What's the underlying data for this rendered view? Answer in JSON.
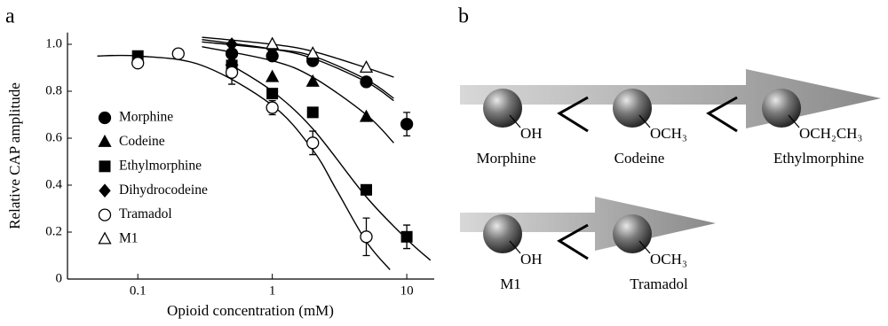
{
  "panel_labels": [
    "a",
    "b"
  ],
  "chart_data": {
    "type": "scatter",
    "xlabel": "Opioid concentration (mM)",
    "ylabel": "Relative CAP amplitude",
    "xscale": "log",
    "xlim": [
      0.03,
      16
    ],
    "ylim": [
      0,
      1.05
    ],
    "xticks": [
      0.1,
      1,
      10
    ],
    "yticks": [
      0,
      0.2,
      0.4,
      0.6,
      0.8,
      {
        "value": 1,
        "label": "1.0"
      }
    ],
    "legend": "left",
    "series": [
      {
        "name": "Morphine",
        "color": "#000000",
        "marker": "circle",
        "filled": true,
        "x": [
          0.5,
          1,
          2,
          5,
          10
        ],
        "values": [
          0.96,
          0.95,
          0.93,
          0.84,
          0.66
        ],
        "errors": [
          null,
          null,
          null,
          null,
          0.05
        ],
        "curve": {
          "x": [
            0.3,
            1,
            2,
            5,
            8
          ],
          "values": [
            1.02,
            0.98,
            0.94,
            0.84,
            0.76
          ]
        }
      },
      {
        "name": "Codeine",
        "color": "#000000",
        "marker": "triangle",
        "filled": true,
        "x": [
          0.5,
          1,
          2,
          5
        ],
        "values": [
          0.93,
          0.86,
          0.84,
          0.69
        ],
        "errors": [
          null,
          null,
          null,
          null
        ],
        "curve": {
          "x": [
            0.3,
            1,
            2,
            5,
            8
          ],
          "values": [
            0.99,
            0.93,
            0.86,
            0.7,
            0.58
          ]
        }
      },
      {
        "name": "Ethylmorphine",
        "color": "#000000",
        "marker": "square",
        "filled": true,
        "x": [
          0.1,
          0.5,
          1,
          2,
          5,
          10
        ],
        "values": [
          0.95,
          0.91,
          0.79,
          0.71,
          0.38,
          0.18
        ],
        "errors": [
          null,
          null,
          null,
          null,
          0.02,
          0.05
        ],
        "curve": {
          "x": [
            0.5,
            1,
            2,
            5,
            10,
            15
          ],
          "values": [
            0.91,
            0.8,
            0.64,
            0.35,
            0.17,
            0.08
          ]
        }
      },
      {
        "name": "Dihydrocodeine",
        "color": "#000000",
        "marker": "diamond",
        "filled": true,
        "x": [
          0.5,
          1,
          2
        ],
        "values": [
          1.0,
          0.98,
          0.94
        ],
        "errors": [
          null,
          null,
          null
        ],
        "curve": {
          "x": [
            0.3,
            1,
            2,
            5,
            8
          ],
          "values": [
            1.01,
            0.98,
            0.95,
            0.85,
            0.77
          ]
        }
      },
      {
        "name": "Tramadol",
        "color": "#000000",
        "marker": "circle",
        "filled": false,
        "x": [
          0.1,
          0.2,
          0.5,
          1,
          2,
          5
        ],
        "values": [
          0.92,
          0.96,
          0.88,
          0.73,
          0.58,
          0.18
        ],
        "errors": [
          null,
          null,
          0.05,
          0.03,
          0.05,
          0.08
        ],
        "curve": {
          "x": [
            0.05,
            0.1,
            0.3,
            1,
            2,
            3,
            5,
            7.5
          ],
          "values": [
            0.95,
            0.95,
            0.91,
            0.74,
            0.55,
            0.38,
            0.16,
            0.04
          ]
        }
      },
      {
        "name": "M1",
        "color": "#000000",
        "marker": "triangle",
        "filled": false,
        "x": [
          1,
          2,
          5
        ],
        "values": [
          1.0,
          0.96,
          0.9
        ],
        "errors": [
          null,
          null,
          null
        ],
        "curve": {
          "x": [
            0.3,
            1,
            2,
            5,
            8
          ],
          "values": [
            1.03,
            1.0,
            0.97,
            0.9,
            0.86
          ]
        }
      }
    ]
  },
  "diagram": {
    "rows": [
      {
        "molecules": [
          {
            "group": "OH",
            "name": "Morphine"
          },
          {
            "group": "OCH₃",
            "name": "Codeine"
          },
          {
            "group": "OCH₂CH₃",
            "name": "Ethylmorphine"
          }
        ]
      },
      {
        "molecules": [
          {
            "group": "OH",
            "name": "M1"
          },
          {
            "group": "OCH₃",
            "name": "Tramadol"
          }
        ]
      }
    ]
  }
}
